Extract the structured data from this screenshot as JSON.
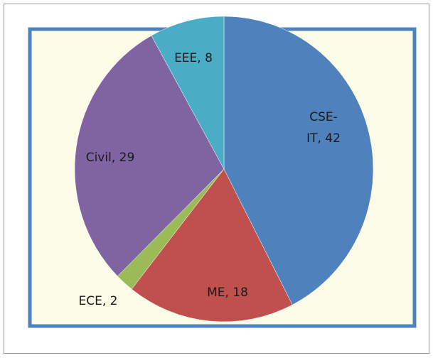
{
  "chart_data": {
    "type": "pie",
    "categories": [
      "CSE-IT",
      "ME",
      "ECE",
      "Civil",
      "EEE"
    ],
    "values": [
      42,
      18,
      2,
      29,
      8
    ],
    "value_labels": [
      "CSE-IT, 42",
      "ME, 18",
      "ECE, 2",
      "Civil, 29",
      "EEE, 8"
    ],
    "colors": [
      "#4f81bd",
      "#c0504d",
      "#9bbb59",
      "#8064a2",
      "#4bacc6"
    ]
  }
}
